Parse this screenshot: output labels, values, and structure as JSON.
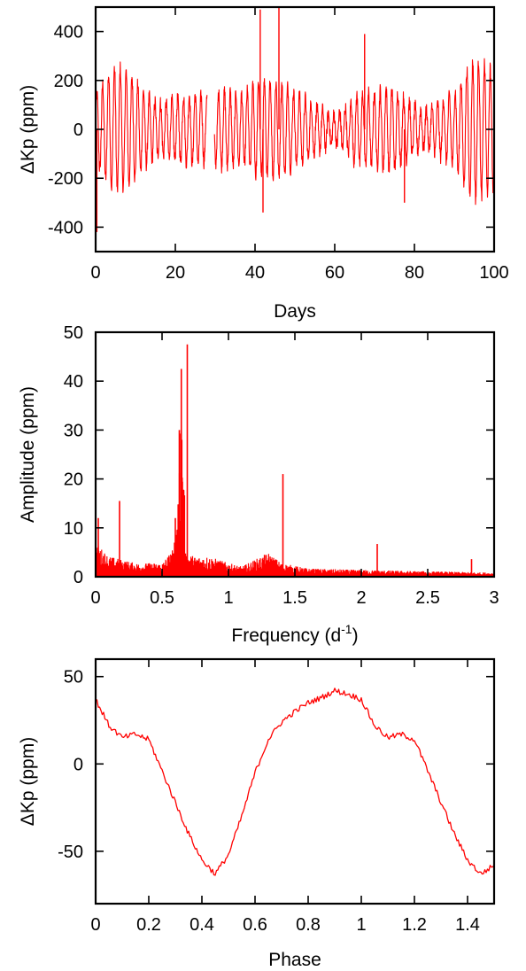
{
  "colors": {
    "series": "#ff0000",
    "axes": "#000000",
    "background": "#ffffff"
  },
  "chart_data": [
    {
      "type": "line",
      "xlabel": "Days",
      "ylabel": "ΔKp (ppm)",
      "xlim": [
        0,
        100
      ],
      "ylim": [
        -500,
        500
      ],
      "xticks": [
        0,
        20,
        40,
        60,
        80,
        100
      ],
      "xtick_labels": [
        "0",
        "20",
        "40",
        "60",
        "80",
        "100"
      ],
      "yticks": [
        400,
        200,
        0,
        -200,
        -400
      ],
      "ytick_labels": [
        "400",
        "200",
        "0",
        "-200",
        "-400"
      ],
      "grid": false,
      "series": [
        {
          "dominant_period_days": 1.45,
          "envelope_days": [
            0,
            5,
            10,
            20,
            28,
            30,
            35,
            40,
            45,
            50,
            55,
            60,
            65,
            70,
            75,
            80,
            85,
            90,
            95,
            100
          ],
          "envelope_amplitude_ppm": [
            150,
            240,
            230,
            160,
            120,
            140,
            220,
            300,
            200,
            140,
            120,
            110,
            160,
            140,
            170,
            150,
            140,
            150,
            270,
            300
          ],
          "spikes": [
            {
              "x": 0.3,
              "y": -420
            },
            {
              "x": 41.3,
              "y": 490
            },
            {
              "x": 46.0,
              "y": 500
            },
            {
              "x": 67.5,
              "y": 390
            },
            {
              "x": 42.0,
              "y": -340
            },
            {
              "x": 77.5,
              "y": -300
            },
            {
              "x": 100,
              "y": -240
            }
          ],
          "gaps_days": [
            [
              28.0,
              29.8
            ]
          ]
        }
      ]
    },
    {
      "type": "line",
      "xlabel": "Frequency (d",
      "xlabel_superscript": "-1",
      "xlabel_suffix": ")",
      "ylabel": "Amplitude (ppm)",
      "xlim": [
        0,
        3
      ],
      "ylim": [
        0,
        50
      ],
      "xticks": [
        0,
        0.5,
        1,
        1.5,
        2,
        2.5,
        3
      ],
      "xtick_labels": [
        "0",
        "0.5",
        "1",
        "1.5",
        "2",
        "2.5",
        "3"
      ],
      "yticks": [
        50,
        40,
        30,
        20,
        10,
        0
      ],
      "ytick_labels": [
        "50",
        "40",
        "30",
        "20",
        "10",
        "0"
      ],
      "grid": false,
      "peaks": [
        {
          "x": 0.02,
          "y": 12.0
        },
        {
          "x": 0.18,
          "y": 15.5
        },
        {
          "x": 0.6,
          "y": 12.0
        },
        {
          "x": 0.63,
          "y": 30.0
        },
        {
          "x": 0.645,
          "y": 42.5
        },
        {
          "x": 0.69,
          "y": 47.5
        },
        {
          "x": 1.41,
          "y": 21.0
        },
        {
          "x": 2.12,
          "y": 6.7
        },
        {
          "x": 2.83,
          "y": 3.6
        }
      ],
      "noise_floor": [
        [
          0,
          5
        ],
        [
          0.1,
          3
        ],
        [
          0.3,
          2
        ],
        [
          0.5,
          2
        ],
        [
          0.58,
          4
        ],
        [
          0.75,
          3
        ],
        [
          0.85,
          3
        ],
        [
          1.0,
          2
        ],
        [
          1.1,
          1.5
        ],
        [
          1.3,
          3.5
        ],
        [
          1.4,
          2
        ],
        [
          1.6,
          1.2
        ],
        [
          2.0,
          1.0
        ],
        [
          2.5,
          0.8
        ],
        [
          3.0,
          0.6
        ]
      ]
    },
    {
      "type": "line",
      "xlabel": "Phase",
      "ylabel": "ΔKp (ppm)",
      "xlim": [
        0,
        1.5
      ],
      "ylim": [
        -80,
        60
      ],
      "xticks": [
        0,
        0.2,
        0.4,
        0.6,
        0.8,
        1,
        1.2,
        1.4
      ],
      "xtick_labels": [
        "0",
        "0.2",
        "0.4",
        "0.6",
        "0.8",
        "1",
        "1.2",
        "1.4"
      ],
      "yticks": [
        50,
        0,
        -50
      ],
      "ytick_labels": [
        "50",
        "0",
        "-50"
      ],
      "grid": false,
      "series": [
        {
          "x": [
            0.0,
            0.05,
            0.1,
            0.15,
            0.2,
            0.25,
            0.3,
            0.35,
            0.4,
            0.45,
            0.5,
            0.55,
            0.6,
            0.65,
            0.7,
            0.75,
            0.8,
            0.85,
            0.9,
            0.95,
            1.0,
            1.05,
            1.1,
            1.15,
            1.2,
            1.25,
            1.3,
            1.35,
            1.4,
            1.45,
            1.5
          ],
          "y": [
            37,
            22,
            15,
            17,
            14,
            -4,
            -22,
            -40,
            -55,
            -63,
            -52,
            -30,
            -5,
            14,
            24,
            30,
            35,
            38,
            42,
            40,
            37,
            22,
            15,
            17,
            14,
            -4,
            -22,
            -40,
            -55,
            -63,
            -58
          ]
        }
      ]
    }
  ]
}
